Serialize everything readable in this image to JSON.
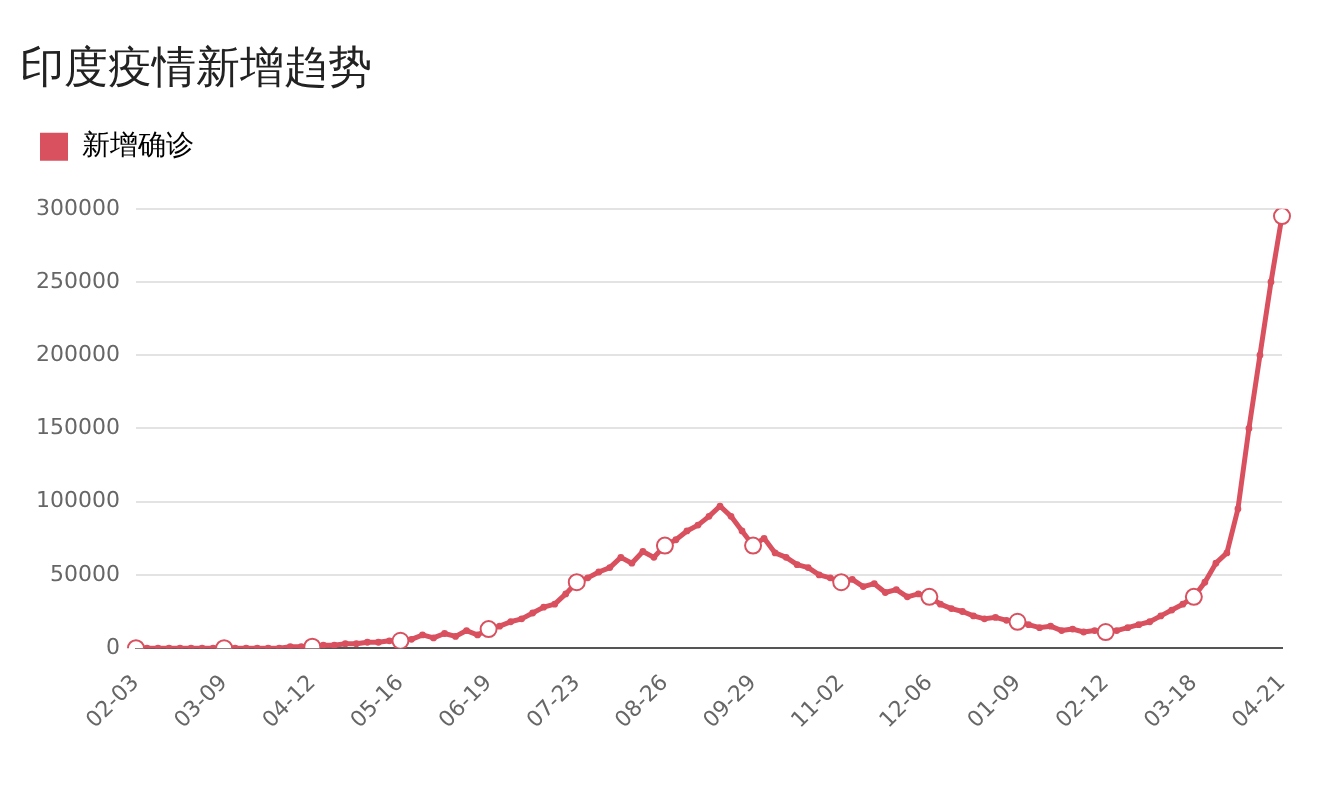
{
  "chart_data": {
    "type": "line",
    "title": "印度疫情新增趋势",
    "categories": [
      "02-03",
      null,
      null,
      null,
      null,
      null,
      null,
      null,
      "03-09",
      null,
      null,
      null,
      null,
      null,
      null,
      null,
      "04-12",
      null,
      null,
      null,
      null,
      null,
      null,
      null,
      "05-16",
      null,
      null,
      null,
      null,
      null,
      null,
      null,
      "06-19",
      null,
      null,
      null,
      null,
      null,
      null,
      null,
      "07-23",
      null,
      null,
      null,
      null,
      null,
      null,
      null,
      "08-26",
      null,
      null,
      null,
      null,
      null,
      null,
      null,
      "09-29",
      null,
      null,
      null,
      null,
      null,
      null,
      null,
      "11-02",
      null,
      null,
      null,
      null,
      null,
      null,
      null,
      "12-06",
      null,
      null,
      null,
      null,
      null,
      null,
      null,
      "01-09",
      null,
      null,
      null,
      null,
      null,
      null,
      null,
      "02-12",
      null,
      null,
      null,
      null,
      null,
      null,
      null,
      "03-18",
      null,
      null,
      null,
      null,
      null,
      null,
      null,
      "04-21"
    ],
    "series": [
      {
        "name": "新增确诊",
        "color": "#d9505f",
        "values": [
          0,
          0,
          0,
          0,
          0,
          0,
          0,
          0,
          0,
          0,
          0,
          0,
          0,
          0,
          1000,
          1000,
          1000,
          2000,
          2000,
          3000,
          3000,
          4000,
          4000,
          5000,
          5000,
          6000,
          9000,
          7000,
          10000,
          8000,
          12000,
          9000,
          13000,
          15000,
          18000,
          20000,
          24000,
          28000,
          30000,
          37000,
          45000,
          48000,
          52000,
          55000,
          62000,
          58000,
          66000,
          62000,
          70000,
          74000,
          80000,
          84000,
          90000,
          97000,
          90000,
          80000,
          70000,
          75000,
          65000,
          62000,
          57000,
          55000,
          50000,
          48000,
          45000,
          47000,
          42000,
          44000,
          38000,
          40000,
          35000,
          37000,
          35000,
          30000,
          27000,
          25000,
          22000,
          20000,
          21000,
          19000,
          18000,
          16000,
          14000,
          15000,
          12000,
          13000,
          11000,
          12000,
          11000,
          12000,
          14000,
          16000,
          18000,
          22000,
          26000,
          30000,
          35000,
          45000,
          58000,
          65000,
          95000,
          150000,
          200000,
          250000,
          295000
        ]
      }
    ],
    "ylim": [
      0,
      300000
    ],
    "yticks": [
      0,
      50000,
      100000,
      150000,
      200000,
      250000,
      300000
    ],
    "grid": "y",
    "legend": "top left",
    "marker": "circle",
    "line_style": "solid"
  }
}
